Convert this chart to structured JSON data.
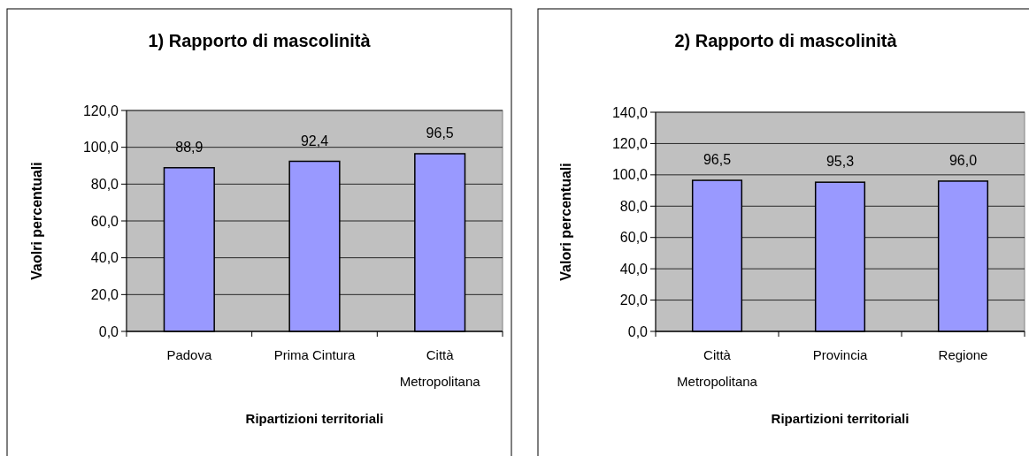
{
  "chart_data": [
    {
      "type": "bar",
      "title": "1) Rapporto di mascolinità",
      "xlabel": "Ripartizioni territoriali",
      "ylabel": "Vaolri percentuali",
      "categories": [
        "Padova",
        "Prima Cintura",
        "Città Metropolitana"
      ],
      "values": [
        88.9,
        92.4,
        96.5
      ],
      "value_labels": [
        "88,9",
        "92,4",
        "96,5"
      ],
      "color": "#9999ff",
      "ylim": [
        0,
        120
      ],
      "yticks": [
        {
          "value": 0,
          "label": "0,0"
        },
        {
          "value": 20,
          "label": "20,0"
        },
        {
          "value": 40,
          "label": "40,0"
        },
        {
          "value": 60,
          "label": "60,0"
        },
        {
          "value": 80,
          "label": "80,0"
        },
        {
          "value": 100,
          "label": "100,0"
        },
        {
          "value": 120,
          "label": "120,0"
        }
      ],
      "grid": "y"
    },
    {
      "type": "bar",
      "title": "2) Rapporto di mascolinità",
      "xlabel": "Ripartizioni territoriali",
      "ylabel": "Valori percentuali",
      "categories": [
        "Città Metropolitana",
        "Provincia",
        "Regione"
      ],
      "values": [
        96.5,
        95.3,
        96.0
      ],
      "value_labels": [
        "96,5",
        "95,3",
        "96,0"
      ],
      "color": "#9999ff",
      "ylim": [
        0,
        140
      ],
      "yticks": [
        {
          "value": 0,
          "label": "0,0"
        },
        {
          "value": 20,
          "label": "20,0"
        },
        {
          "value": 40,
          "label": "40,0"
        },
        {
          "value": 60,
          "label": "60,0"
        },
        {
          "value": 80,
          "label": "80,0"
        },
        {
          "value": 100,
          "label": "100,0"
        },
        {
          "value": 120,
          "label": "120,0"
        },
        {
          "value": 140,
          "label": "140,0"
        }
      ],
      "grid": "y"
    }
  ]
}
